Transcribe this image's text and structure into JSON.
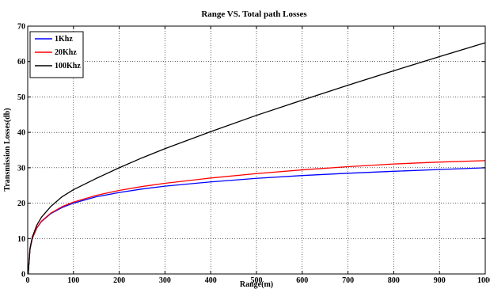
{
  "chart_data": {
    "type": "line",
    "title": "Range VS. Total path Losses",
    "xlabel": "Range(m)",
    "ylabel": "Transmission Losses(db)",
    "xlim": [
      0,
      1000
    ],
    "ylim": [
      0,
      70
    ],
    "xticks": [
      0,
      100,
      200,
      300,
      400,
      500,
      600,
      700,
      800,
      900,
      1000
    ],
    "yticks": [
      0,
      10,
      20,
      30,
      40,
      50,
      60,
      70
    ],
    "grid": true,
    "legend_position": "top-left",
    "x": [
      1,
      5,
      10,
      20,
      30,
      50,
      75,
      100,
      150,
      200,
      250,
      300,
      400,
      500,
      600,
      700,
      800,
      900,
      1000
    ],
    "series": [
      {
        "name": "1Khz",
        "color": "#0000ff",
        "values": [
          0.0,
          7.0,
          10.0,
          13.0,
          14.8,
          17.0,
          18.75,
          20.0,
          21.8,
          23.0,
          24.0,
          24.8,
          26.0,
          27.0,
          27.8,
          28.45,
          29.0,
          29.5,
          30.0
        ]
      },
      {
        "name": "20Khz",
        "color": "#ff0000",
        "values": [
          0.0,
          7.0,
          10.0,
          13.05,
          14.9,
          17.15,
          19.0,
          20.3,
          22.2,
          23.6,
          24.7,
          25.6,
          27.1,
          28.35,
          29.4,
          30.3,
          31.05,
          31.6,
          32.0
        ]
      },
      {
        "name": "100Khz",
        "color": "#000000",
        "values": [
          0.0,
          7.2,
          10.4,
          13.8,
          16.0,
          19.0,
          21.8,
          23.8,
          27.0,
          30.0,
          32.8,
          35.4,
          40.2,
          44.8,
          49.1,
          53.3,
          57.4,
          61.4,
          65.3
        ]
      }
    ]
  }
}
